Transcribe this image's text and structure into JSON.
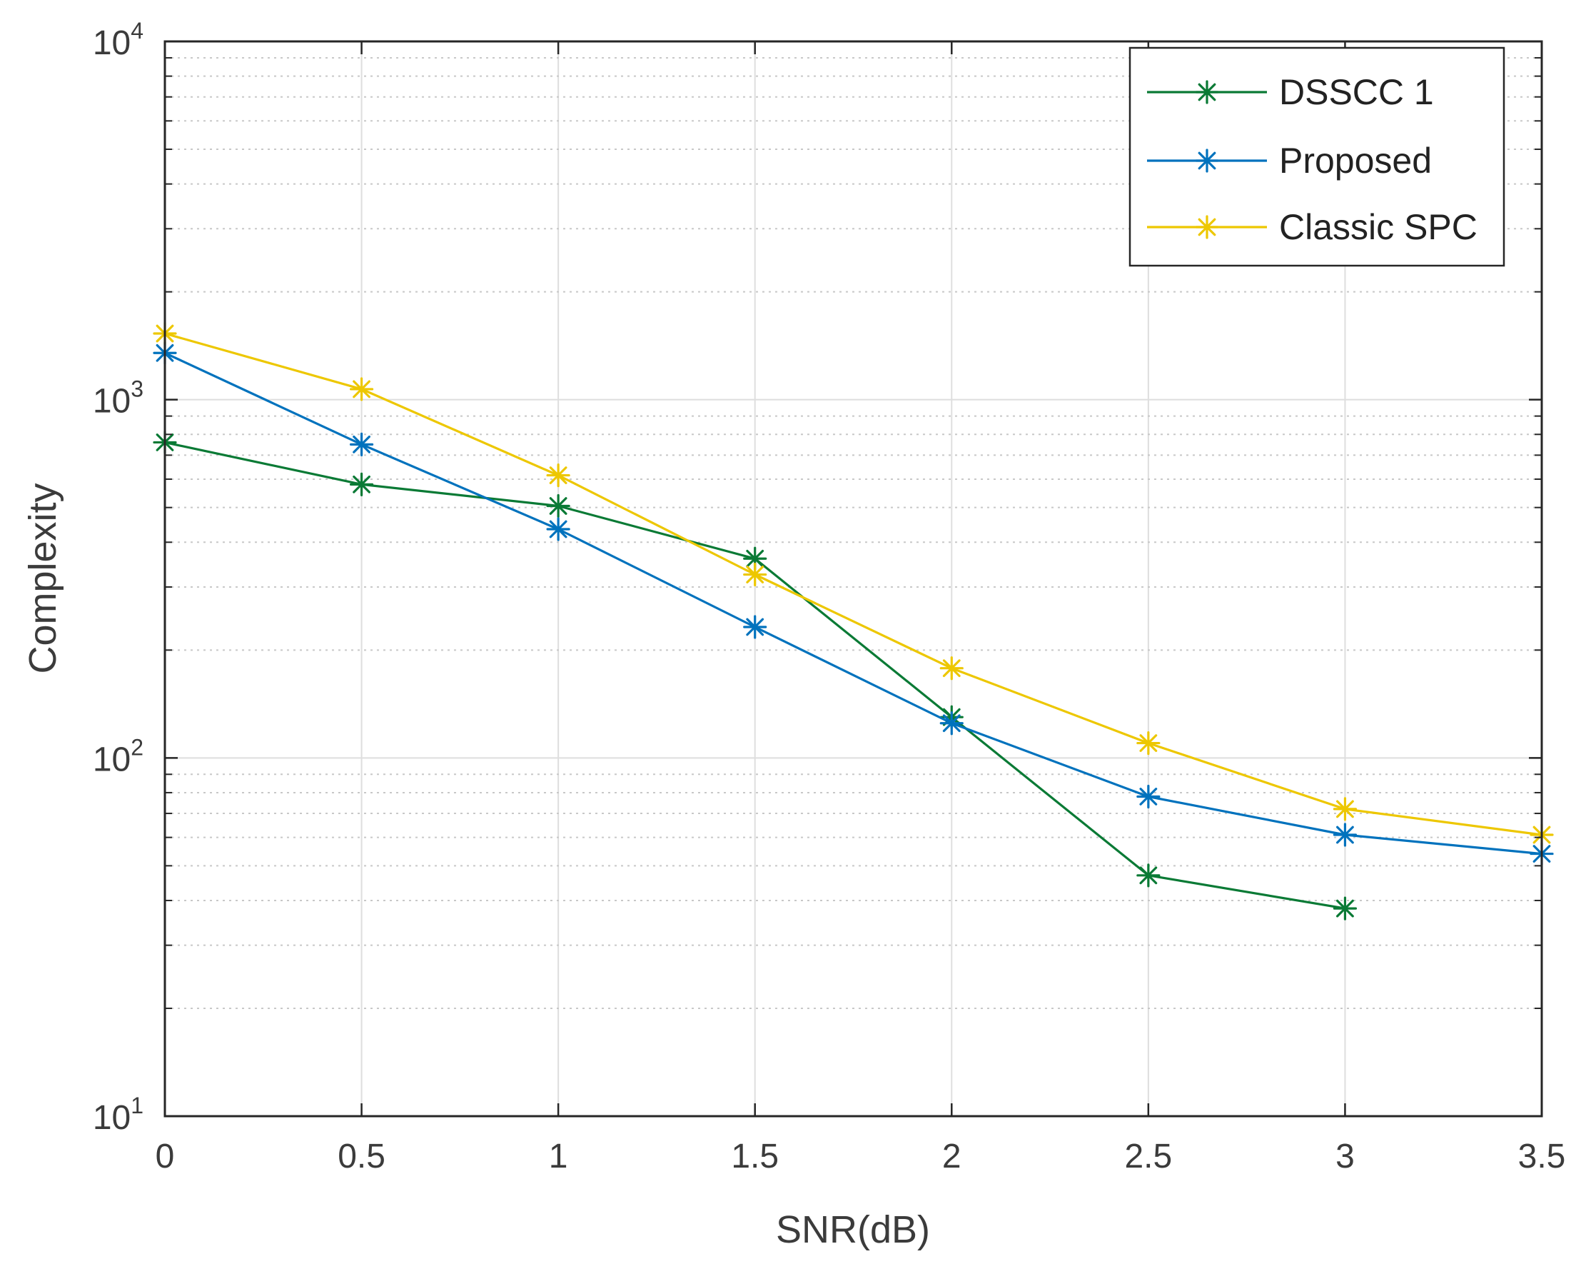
{
  "chart_data": {
    "type": "line",
    "title": "",
    "xlabel": "SNR(dB)",
    "ylabel": "Complexity",
    "y_scale": "log",
    "xlim": [
      0,
      3.5
    ],
    "ylim": [
      10,
      10000
    ],
    "grid": true,
    "legend_position": "top-right",
    "x_ticks": [
      {
        "value": 0,
        "label": "0"
      },
      {
        "value": 0.5,
        "label": "0.5"
      },
      {
        "value": 1,
        "label": "1"
      },
      {
        "value": 1.5,
        "label": "1.5"
      },
      {
        "value": 2,
        "label": "2"
      },
      {
        "value": 2.5,
        "label": "2.5"
      },
      {
        "value": 3,
        "label": "3"
      },
      {
        "value": 3.5,
        "label": "3.5"
      }
    ],
    "y_ticks": [
      {
        "value": 10,
        "base": "10",
        "exp": "1"
      },
      {
        "value": 100,
        "base": "10",
        "exp": "2"
      },
      {
        "value": 1000,
        "base": "10",
        "exp": "3"
      },
      {
        "value": 10000,
        "base": "10",
        "exp": "4"
      }
    ],
    "series": [
      {
        "name": "DSSCC 1",
        "color": "#0a7a35",
        "marker": "asterisk",
        "x": [
          0,
          0.5,
          1,
          1.5,
          2,
          2.5,
          3
        ],
        "values": [
          760,
          580,
          505,
          360,
          130,
          47,
          38
        ]
      },
      {
        "name": "Proposed",
        "color": "#0072bd",
        "marker": "asterisk",
        "x": [
          0,
          0.5,
          1,
          1.5,
          2,
          2.5,
          3,
          3.5
        ],
        "values": [
          1350,
          750,
          435,
          232,
          125,
          78,
          61,
          54
        ]
      },
      {
        "name": "Classic SPC",
        "color": "#edc700",
        "marker": "asterisk",
        "x": [
          0,
          0.5,
          1,
          1.5,
          2,
          2.5,
          3,
          3.5
        ],
        "values": [
          1530,
          1070,
          615,
          325,
          178,
          110,
          72,
          61
        ]
      }
    ]
  }
}
